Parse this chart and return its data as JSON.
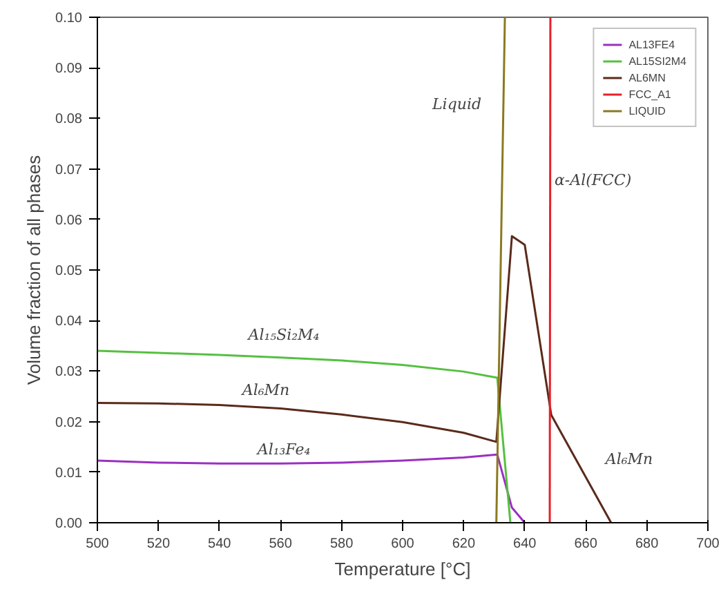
{
  "chart_data": {
    "type": "line",
    "xlabel": "Temperature [°C]",
    "ylabel": "Volume fraction of all phases",
    "xlim": [
      500,
      700
    ],
    "ylim": [
      0,
      0.1
    ],
    "xticks": [
      500,
      520,
      540,
      560,
      580,
      600,
      620,
      640,
      660,
      680,
      700
    ],
    "yticks": [
      {
        "value": 0,
        "label": "0.00"
      },
      {
        "value": 0.01,
        "label": "0.01"
      },
      {
        "value": 0.02,
        "label": "0.02"
      },
      {
        "value": 0.03,
        "label": "0.03"
      },
      {
        "value": 0.04,
        "label": "0.04"
      },
      {
        "value": 0.05,
        "label": "0.05"
      },
      {
        "value": 0.06,
        "label": "0.06"
      },
      {
        "value": 0.07,
        "label": "0.07"
      },
      {
        "value": 0.08,
        "label": "0.08"
      },
      {
        "value": 0.09,
        "label": "0.09"
      },
      {
        "value": 0.1,
        "label": "0.10"
      }
    ],
    "grid": false,
    "legend": "top right",
    "marker": "none",
    "line_style": "solid",
    "series": [
      {
        "name": "AL13FE4",
        "color": "#9b30c0",
        "x": [
          500,
          520,
          540,
          560,
          580,
          600,
          620,
          631,
          635.8,
          640
        ],
        "values": [
          0.0123,
          0.0119,
          0.0117,
          0.0117,
          0.0119,
          0.0123,
          0.0129,
          0.0135,
          0.003,
          0
        ]
      },
      {
        "name": "AL15SI2M4",
        "color": "#55c040",
        "x": [
          500,
          520,
          540,
          560,
          580,
          600,
          620,
          631,
          635.3
        ],
        "values": [
          0.034,
          0.0336,
          0.0332,
          0.0327,
          0.0321,
          0.0312,
          0.0299,
          0.0287,
          0
        ]
      },
      {
        "name": "AL6MN",
        "color": "#5a2a1a",
        "x": [
          500,
          520,
          540,
          560,
          580,
          600,
          620,
          630.7,
          635.8,
          640,
          648.7,
          668.3
        ],
        "values": [
          0.0237,
          0.0236,
          0.0233,
          0.0226,
          0.0214,
          0.0199,
          0.0178,
          0.016,
          0.0567,
          0.055,
          0.0213,
          0
        ]
      },
      {
        "name": "FCC_A1",
        "color": "#e8202a",
        "x": [
          648.2,
          648.4
        ],
        "values": [
          0,
          0.1
        ]
      },
      {
        "name": "LIQUID",
        "color": "#8a7a20",
        "x": [
          630.7,
          633.5
        ],
        "values": [
          0,
          0.1
        ]
      }
    ],
    "annotations": [
      "Liquid",
      "α-Al(FCC)",
      "Al₁₅Si₂M₄",
      "Al₆Mn",
      "Al₁₃Fe₄",
      "Al₆Mn"
    ]
  }
}
